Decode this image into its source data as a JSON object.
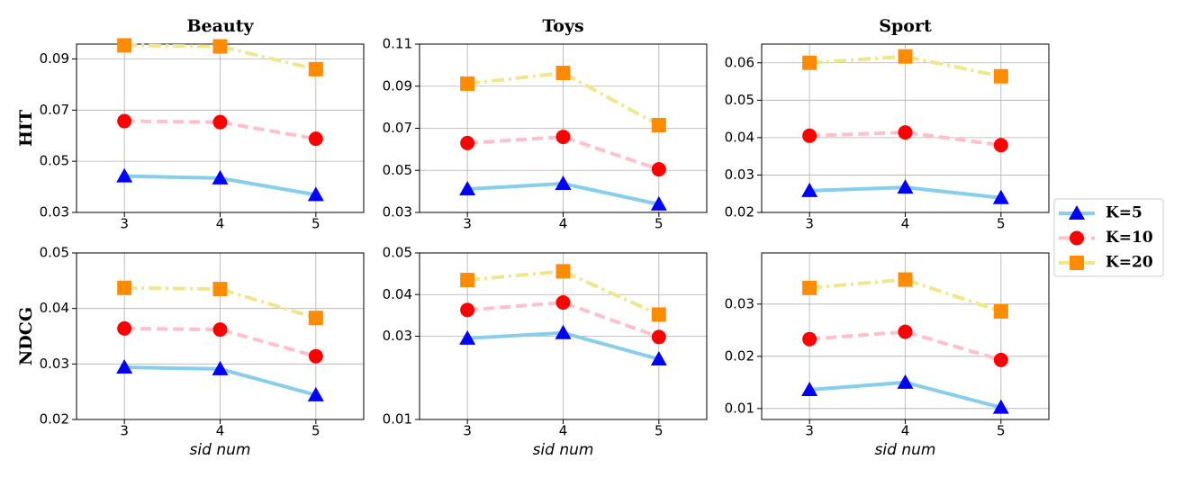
{
  "chart_data": [
    {
      "type": "line",
      "title": "Beauty",
      "ylabel": "HIT",
      "x": [
        3,
        4,
        5
      ],
      "xlim": [
        2.5,
        5.5
      ],
      "xticks": [
        3,
        4,
        5
      ],
      "ylim": [
        0.03,
        0.0958
      ],
      "yticks": [
        0.03,
        0.05,
        0.07,
        0.09
      ],
      "grid": true,
      "series": [
        {
          "name": "K=5",
          "color": "#87ceeb",
          "marker": "triangle",
          "marker_color": "#0000ff",
          "linestyle": "solid",
          "values": [
            0.0442,
            0.0434,
            0.0369
          ]
        },
        {
          "name": "K=10",
          "color": "#ffc0cb",
          "marker": "circle",
          "marker_color": "#ff0000",
          "linestyle": "dashed",
          "values": [
            0.0657,
            0.0653,
            0.0588
          ]
        },
        {
          "name": "K=20",
          "color": "#f0e68c",
          "marker": "square",
          "marker_color": "#ff8c00",
          "linestyle": "dashdot",
          "values": [
            0.0953,
            0.0949,
            0.086
          ]
        }
      ]
    },
    {
      "type": "line",
      "title": "Toys",
      "x": [
        3,
        4,
        5
      ],
      "xlim": [
        2.5,
        5.5
      ],
      "xticks": [
        3,
        4,
        5
      ],
      "ylim": [
        0.03,
        0.11
      ],
      "yticks": [
        0.03,
        0.05,
        0.07,
        0.09,
        0.11
      ],
      "grid": true,
      "series": [
        {
          "name": "K=5",
          "color": "#87ceeb",
          "marker": "triangle",
          "marker_color": "#0000ff",
          "linestyle": "solid",
          "values": [
            0.0411,
            0.0437,
            0.0339
          ]
        },
        {
          "name": "K=10",
          "color": "#ffc0cb",
          "marker": "circle",
          "marker_color": "#ff0000",
          "linestyle": "dashed",
          "values": [
            0.063,
            0.0659,
            0.0505
          ]
        },
        {
          "name": "K=20",
          "color": "#f0e68c",
          "marker": "square",
          "marker_color": "#ff8c00",
          "linestyle": "dashdot",
          "values": [
            0.0912,
            0.0963,
            0.0715
          ]
        }
      ]
    },
    {
      "type": "line",
      "title": "Sport",
      "x": [
        3,
        4,
        5
      ],
      "xlim": [
        2.5,
        5.5
      ],
      "xticks": [
        3,
        4,
        5
      ],
      "ylim": [
        0.02,
        0.065
      ],
      "yticks": [
        0.02,
        0.03,
        0.04,
        0.05,
        0.06
      ],
      "grid": true,
      "series": [
        {
          "name": "K=5",
          "color": "#87ceeb",
          "marker": "triangle",
          "marker_color": "#0000ff",
          "linestyle": "solid",
          "values": [
            0.0258,
            0.0267,
            0.0239
          ]
        },
        {
          "name": "K=10",
          "color": "#ffc0cb",
          "marker": "circle",
          "marker_color": "#ff0000",
          "linestyle": "dashed",
          "values": [
            0.0405,
            0.0414,
            0.038
          ]
        },
        {
          "name": "K=20",
          "color": "#f0e68c",
          "marker": "square",
          "marker_color": "#ff8c00",
          "linestyle": "dashdot",
          "values": [
            0.06,
            0.0617,
            0.0564
          ]
        }
      ]
    },
    {
      "type": "line",
      "ylabel": "NDCG",
      "xlabel": "sid num",
      "x": [
        3,
        4,
        5
      ],
      "xlim": [
        2.5,
        5.5
      ],
      "xticks": [
        3,
        4,
        5
      ],
      "ylim": [
        0.02,
        0.05
      ],
      "yticks": [
        0.02,
        0.03,
        0.04,
        0.05
      ],
      "grid": true,
      "series": [
        {
          "name": "K=5",
          "color": "#87ceeb",
          "marker": "triangle",
          "marker_color": "#0000ff",
          "linestyle": "solid",
          "values": [
            0.0294,
            0.0291,
            0.0244
          ]
        },
        {
          "name": "K=10",
          "color": "#ffc0cb",
          "marker": "circle",
          "marker_color": "#ff0000",
          "linestyle": "dashed",
          "values": [
            0.0364,
            0.0362,
            0.0314
          ]
        },
        {
          "name": "K=20",
          "color": "#f0e68c",
          "marker": "square",
          "marker_color": "#ff8c00",
          "linestyle": "dashdot",
          "values": [
            0.0437,
            0.0435,
            0.0383
          ]
        }
      ]
    },
    {
      "type": "line",
      "xlabel": "sid num",
      "x": [
        3,
        4,
        5
      ],
      "xlim": [
        2.5,
        5.5
      ],
      "xticks": [
        3,
        4,
        5
      ],
      "ylim": [
        0.01,
        0.05
      ],
      "yticks": [
        0.01,
        0.03,
        0.04,
        0.05
      ],
      "grid": true,
      "series": [
        {
          "name": "K=5",
          "color": "#87ceeb",
          "marker": "triangle",
          "marker_color": "#0000ff",
          "linestyle": "solid",
          "values": [
            0.0295,
            0.0308,
            0.0245
          ]
        },
        {
          "name": "K=10",
          "color": "#ffc0cb",
          "marker": "circle",
          "marker_color": "#ff0000",
          "linestyle": "dashed",
          "values": [
            0.0363,
            0.0381,
            0.0298
          ]
        },
        {
          "name": "K=20",
          "color": "#f0e68c",
          "marker": "square",
          "marker_color": "#ff8c00",
          "linestyle": "dashdot",
          "values": [
            0.0435,
            0.0456,
            0.0352
          ]
        }
      ]
    },
    {
      "type": "line",
      "xlabel": "sid num",
      "x": [
        3,
        4,
        5
      ],
      "xlim": [
        2.5,
        5.5
      ],
      "xticks": [
        3,
        4,
        5
      ],
      "ylim": [
        0.0079,
        0.0398
      ],
      "yticks": [
        0.01,
        0.02,
        0.03
      ],
      "grid": true,
      "series": [
        {
          "name": "K=5",
          "color": "#87ceeb",
          "marker": "triangle",
          "marker_color": "#0000ff",
          "linestyle": "solid",
          "values": [
            0.0136,
            0.015,
            0.0102
          ]
        },
        {
          "name": "K=10",
          "color": "#ffc0cb",
          "marker": "circle",
          "marker_color": "#ff0000",
          "linestyle": "dashed",
          "values": [
            0.0233,
            0.0247,
            0.0193
          ]
        },
        {
          "name": "K=20",
          "color": "#f0e68c",
          "marker": "square",
          "marker_color": "#ff8c00",
          "linestyle": "dashdot",
          "values": [
            0.0331,
            0.0347,
            0.0286
          ]
        }
      ]
    }
  ]
}
